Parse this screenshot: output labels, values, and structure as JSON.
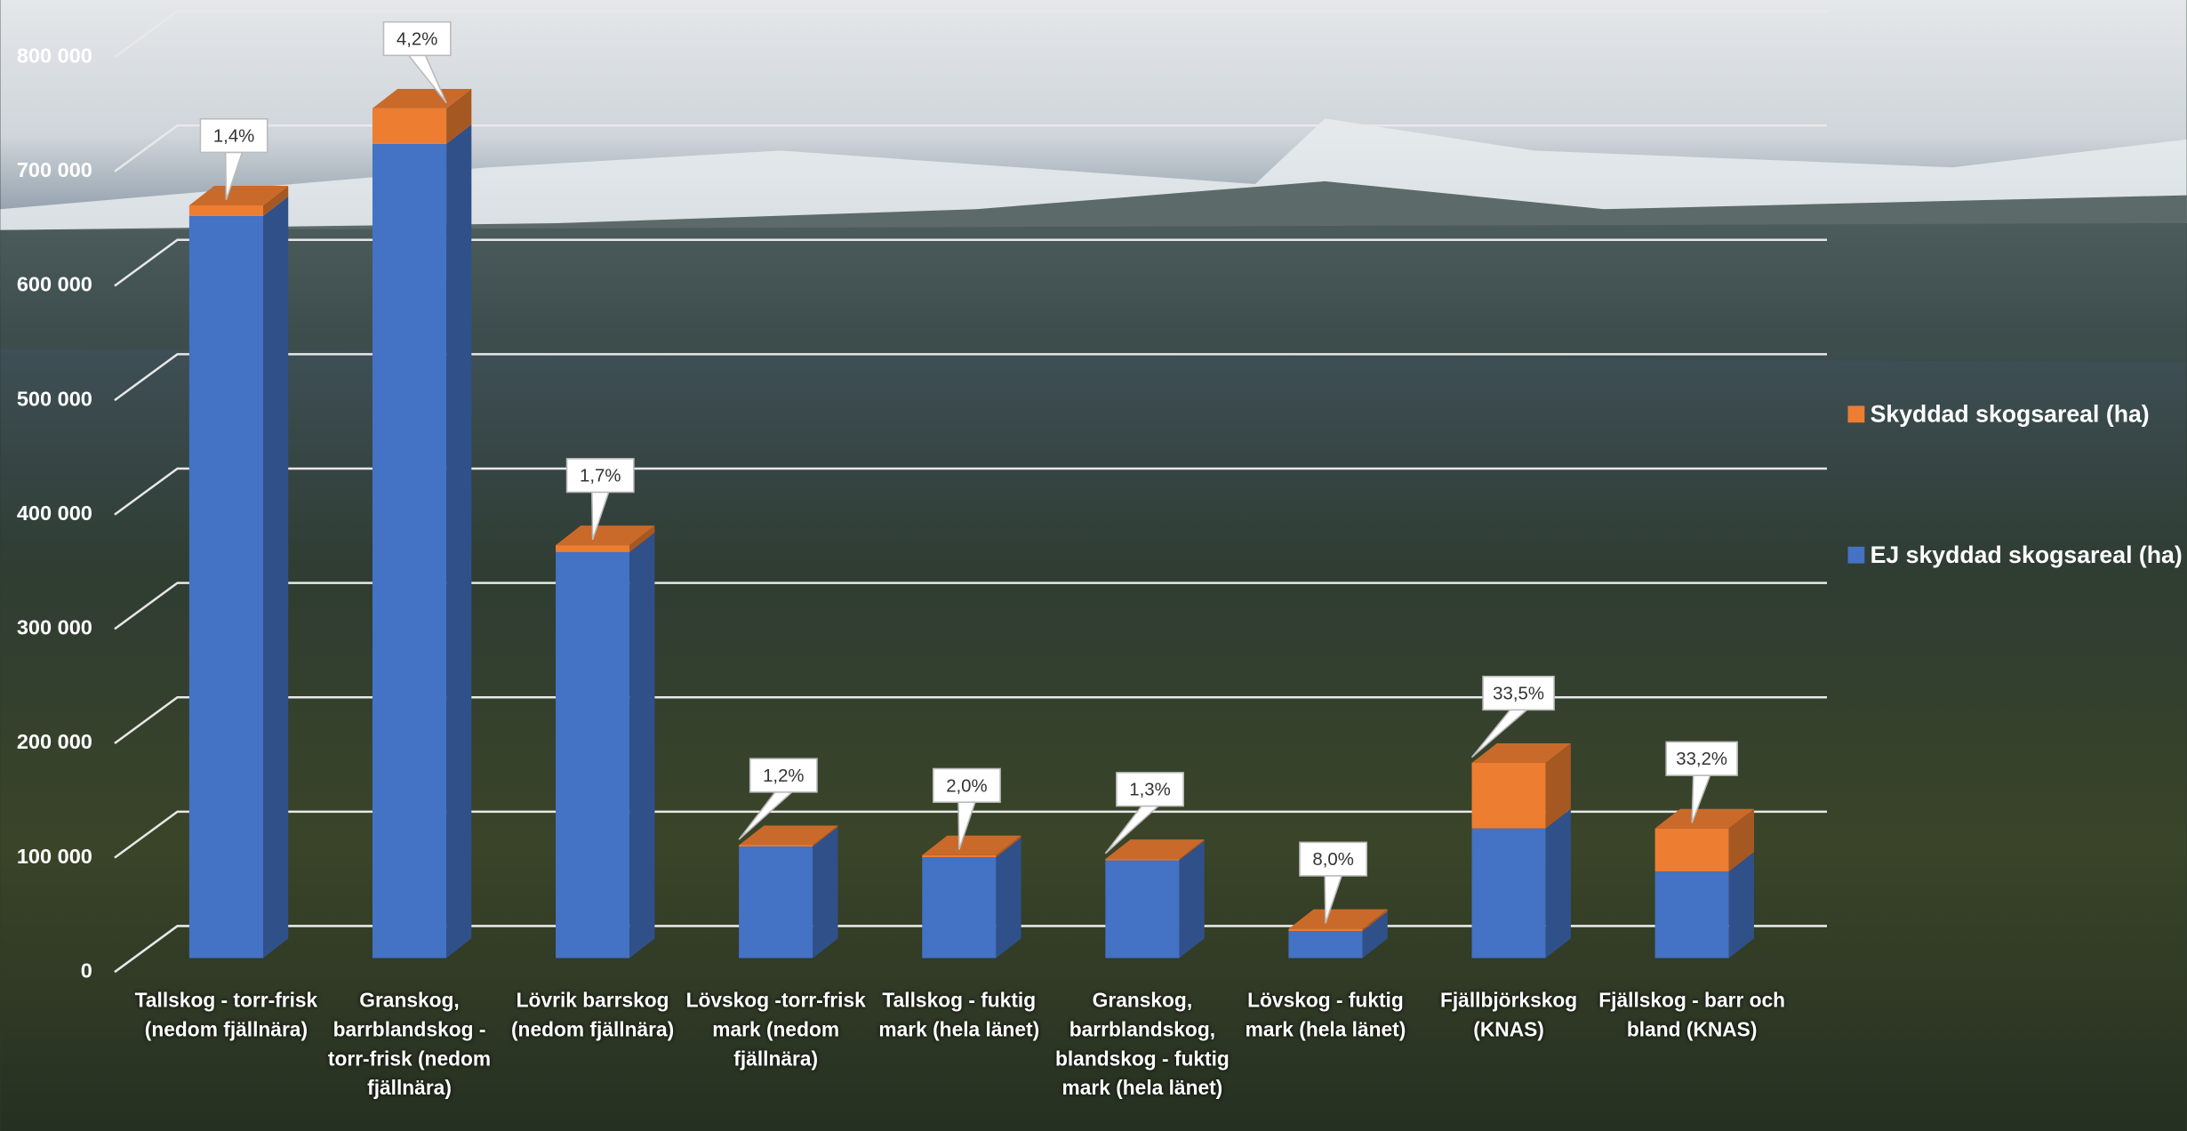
{
  "chart_data": {
    "type": "bar3d_stacked",
    "categories": [
      "Tallskog - torr-frisk (nedom fjällnära)",
      "Granskog, barrblandskog - torr-frisk (nedom fjällnära)",
      "Lövrik barrskog (nedom fjällnära)",
      "Lövskog -torr-frisk mark (nedom fjällnära)",
      "Tallskog - fuktig mark (hela länet)",
      "Granskog, barrblandskog, blandskog - fuktig mark (hela länet)",
      "Lövskog - fuktig mark (hela länet)",
      "Fjällbjörkskog (KNAS)",
      "Fjällskog - barr och bland (KNAS)"
    ],
    "series": [
      {
        "name": "EJ skyddad skogsareal (ha)",
        "color": "#4472c4",
        "values": [
          649000,
          712000,
          355000,
          97600,
          88200,
          85500,
          23600,
          113400,
          75700
        ]
      },
      {
        "name": "Skyddad skogsareal (ha)",
        "color": "#ed7d31",
        "values": [
          9200,
          31000,
          6100,
          1200,
          1800,
          1100,
          2000,
          57300,
          37700
        ],
        "annotations": [
          "1,4%",
          "4,2%",
          "1,7%",
          "1,2%",
          "2,0%",
          "1,3%",
          "8,0%",
          "33,5%",
          "33,2%"
        ]
      }
    ],
    "ylim": [
      0,
      800000
    ],
    "yticks": [
      {
        "value": 0,
        "label": "0"
      },
      {
        "value": 100000,
        "label": "100 000"
      },
      {
        "value": 200000,
        "label": "200 000"
      },
      {
        "value": 300000,
        "label": "300 000"
      },
      {
        "value": 400000,
        "label": "400 000"
      },
      {
        "value": 500000,
        "label": "500 000"
      },
      {
        "value": 600000,
        "label": "600 000"
      },
      {
        "value": 700000,
        "label": "700 000"
      },
      {
        "value": 800000,
        "label": "800 000"
      }
    ],
    "grid": true,
    "stacked": true,
    "legend": "right"
  }
}
